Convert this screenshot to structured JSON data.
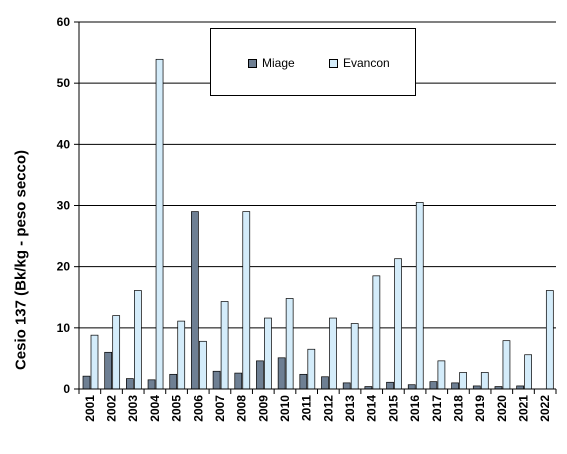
{
  "chart_data": {
    "type": "bar",
    "title": "",
    "xlabel": "",
    "ylabel": "Cesio 137 (Bk/kg - peso secco)",
    "ylim": [
      0,
      60
    ],
    "yticks": [
      0,
      10,
      20,
      30,
      40,
      50,
      60
    ],
    "grid": true,
    "legend_position": "top-center",
    "categories": [
      "2001",
      "2002",
      "2003",
      "2004",
      "2005",
      "2006",
      "2007",
      "2008",
      "2009",
      "2010",
      "2011",
      "2012",
      "2013",
      "2014",
      "2015",
      "2016",
      "2017",
      "2018",
      "2019",
      "2020",
      "2021",
      "2022"
    ],
    "series": [
      {
        "name": "Miage",
        "color": "#6e7f93",
        "values": [
          2.1,
          6.0,
          1.7,
          1.5,
          2.4,
          29.0,
          2.9,
          2.6,
          4.6,
          5.1,
          2.4,
          2.0,
          1.0,
          0.4,
          1.1,
          0.7,
          1.2,
          1.0,
          0.5,
          0.4,
          0.5,
          0
        ]
      },
      {
        "name": "Evancon",
        "color": "#d4ecfa",
        "values": [
          8.8,
          12.0,
          16.1,
          53.9,
          11.1,
          7.8,
          14.3,
          29.0,
          11.6,
          14.8,
          6.5,
          11.6,
          10.7,
          18.5,
          21.3,
          30.5,
          4.6,
          2.7,
          2.7,
          7.9,
          5.6,
          16.1
        ]
      }
    ]
  }
}
